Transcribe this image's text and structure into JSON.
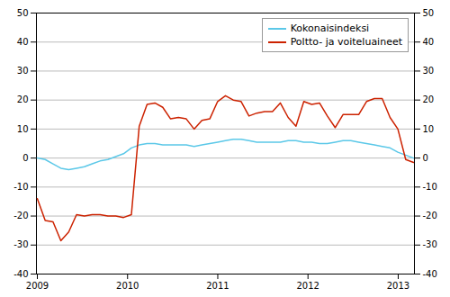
{
  "chart_data": {
    "type": "line",
    "title": "",
    "x": [
      2009,
      2009.086875,
      2009.17375,
      2009.260625,
      2009.3475,
      2009.434375,
      2009.52125,
      2009.608125,
      2009.695,
      2009.781875,
      2009.86875,
      2009.955625,
      2010.0425,
      2010.129375,
      2010.21625,
      2010.303125,
      2010.39,
      2010.476875,
      2010.56375,
      2010.650625,
      2010.7375,
      2010.824375,
      2010.91125,
      2010.998125,
      2011.085,
      2011.171875,
      2011.25875,
      2011.345625,
      2011.4325,
      2011.519375,
      2011.60625,
      2011.693125,
      2011.78,
      2011.866875,
      2011.95375,
      2012.040625,
      2012.1275,
      2012.214375,
      2012.30125,
      2012.388125,
      2012.475,
      2012.561875,
      2012.64875,
      2012.735625,
      2012.8225,
      2012.909375,
      2012.99625,
      2013.083125,
      2013.17
    ],
    "series": [
      {
        "name": "Kokonaisindeksi",
        "color": "#5bc8e8",
        "values": [
          0.0,
          -0.5,
          -2.0,
          -3.5,
          -4.0,
          -3.5,
          -3.0,
          -2.0,
          -1.0,
          -0.5,
          0.5,
          1.5,
          3.5,
          4.5,
          5.0,
          5.0,
          4.5,
          4.5,
          4.5,
          4.5,
          4.0,
          4.5,
          5.0,
          5.5,
          6.0,
          6.5,
          6.5,
          6.0,
          5.5,
          5.5,
          5.5,
          5.5,
          6.0,
          6.0,
          5.5,
          5.5,
          5.0,
          5.0,
          5.5,
          6.0,
          6.0,
          5.5,
          5.0,
          4.5,
          4.0,
          3.5,
          2.0,
          1.0,
          0.0
        ]
      },
      {
        "name": "Poltto- ja voiteluaineet",
        "color": "#cc2200",
        "values": [
          -14.0,
          -21.5,
          -22.0,
          -28.5,
          -25.5,
          -19.5,
          -20.0,
          -19.5,
          -19.5,
          -20.0,
          -20.0,
          -20.5,
          -19.5,
          11.0,
          18.5,
          19.0,
          17.5,
          13.5,
          14.0,
          13.5,
          10.0,
          13.0,
          13.5,
          19.5,
          21.5,
          20.0,
          19.5,
          14.5,
          15.5,
          16.0,
          16.0,
          19.0,
          14.0,
          11.0,
          19.5,
          18.5,
          19.0,
          14.5,
          10.5,
          15.0,
          15.0,
          15.0,
          19.5,
          20.5,
          20.5,
          14.0,
          10.0,
          -0.5,
          -1.5
        ]
      }
    ],
    "xlim": [
      2008.99,
      2013.18
    ],
    "xticks": [
      2009,
      2010,
      2011,
      2012,
      2013
    ],
    "ylim": [
      -40,
      50
    ],
    "yticks": [
      -40,
      -30,
      -20,
      -10,
      0,
      10,
      20,
      30,
      40,
      50
    ],
    "y2lim": [
      -40,
      50
    ],
    "y2ticks": [
      -40,
      -30,
      -20,
      -10,
      0,
      10,
      20,
      30,
      40,
      50
    ],
    "grid": true,
    "legend": "upper right"
  }
}
